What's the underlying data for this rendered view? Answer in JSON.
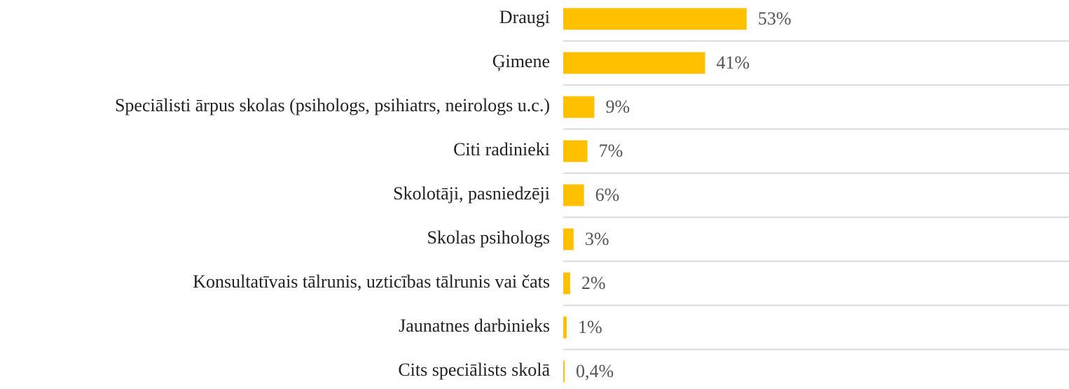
{
  "chart_data": {
    "type": "bar",
    "orientation": "horizontal",
    "categories": [
      "Draugi",
      "Ģimene",
      "Speciālisti ārpus skolas (psihologs, psihiatrs, neirologs u.c.)",
      "Citi radinieki",
      "Skolotāji, pasniedzēji",
      "Skolas psihologs",
      "Konsultatīvais tālrunis, uzticības tālrunis vai čats",
      "Jaunatnes darbinieks",
      "Cits speciālists skolā"
    ],
    "values": [
      53,
      41,
      9,
      7,
      6,
      3,
      2,
      1,
      0.4
    ],
    "value_labels": [
      "53%",
      "41%",
      "9%",
      "7%",
      "6%",
      "3%",
      "2%",
      "1%",
      "0,4%"
    ],
    "color": "#ffc000"
  }
}
